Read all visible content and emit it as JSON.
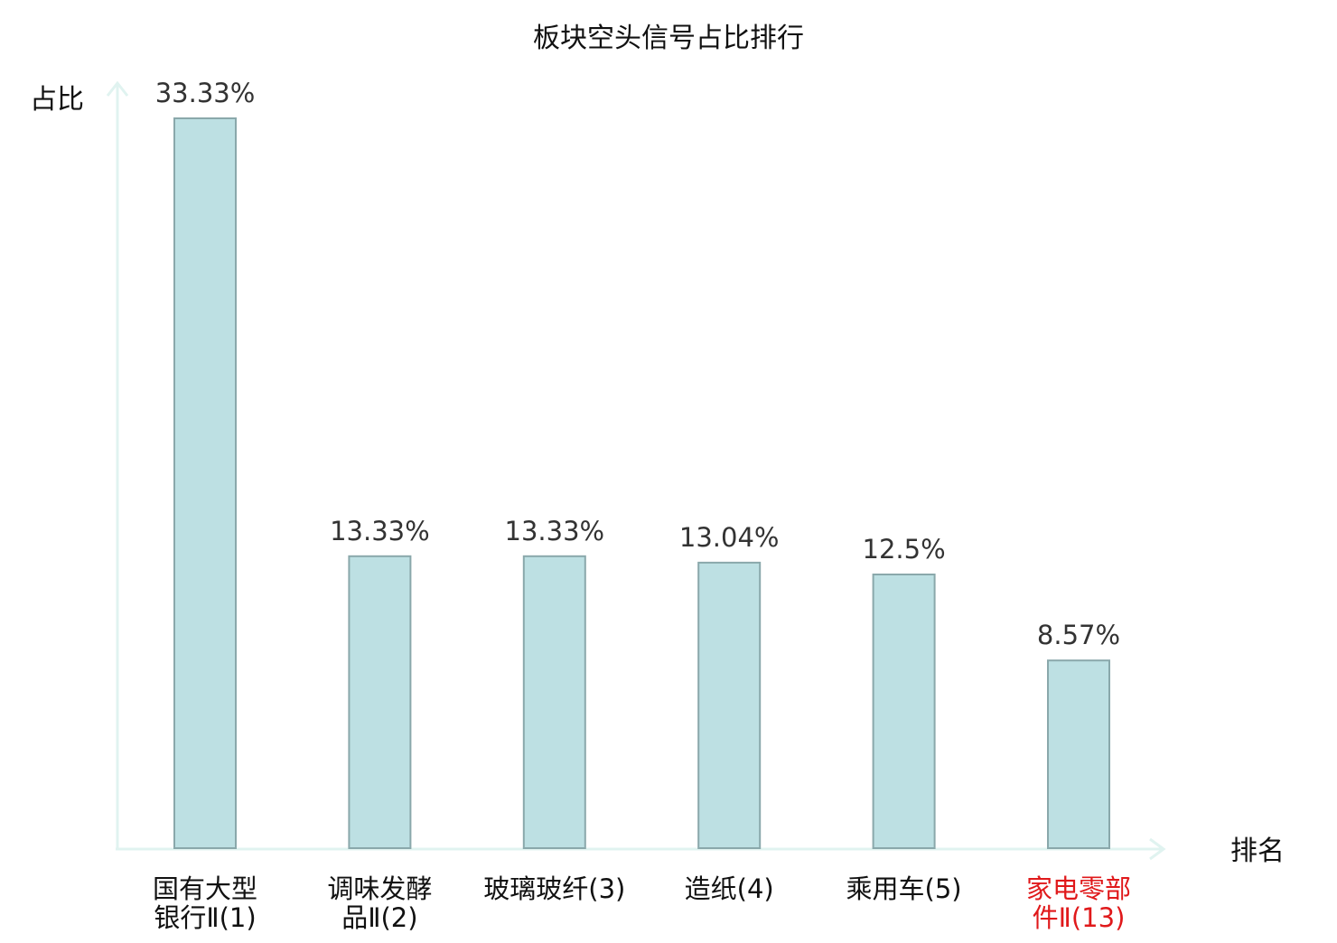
{
  "chart_data": {
    "type": "bar",
    "title": "板块空头信号占比排行",
    "xlabel": "排名",
    "ylabel": "占比",
    "categories": [
      [
        "国有大型",
        "银行Ⅱ(1)"
      ],
      [
        "调味发酵",
        "品Ⅱ(2)"
      ],
      [
        "玻璃玻纤(3)"
      ],
      [
        "造纸(4)"
      ],
      [
        "乘用车(5)"
      ],
      [
        "家电零部",
        "件Ⅱ(13)"
      ]
    ],
    "values": [
      33.33,
      13.33,
      13.33,
      13.04,
      12.5,
      8.57
    ],
    "value_labels": [
      "33.33%",
      "13.33%",
      "13.33%",
      "13.04%",
      "12.5%",
      "8.57%"
    ],
    "highlighted_index": 5,
    "ylim": [
      0,
      33.33
    ],
    "grid": false,
    "legend": "none",
    "colors": {
      "bar_fill": "#bde0e3",
      "bar_stroke": "#8aa8ab",
      "axis": "#e0f3f0",
      "text": "#111111",
      "value_text": "#333333",
      "highlight_text": "#e0191b"
    }
  }
}
